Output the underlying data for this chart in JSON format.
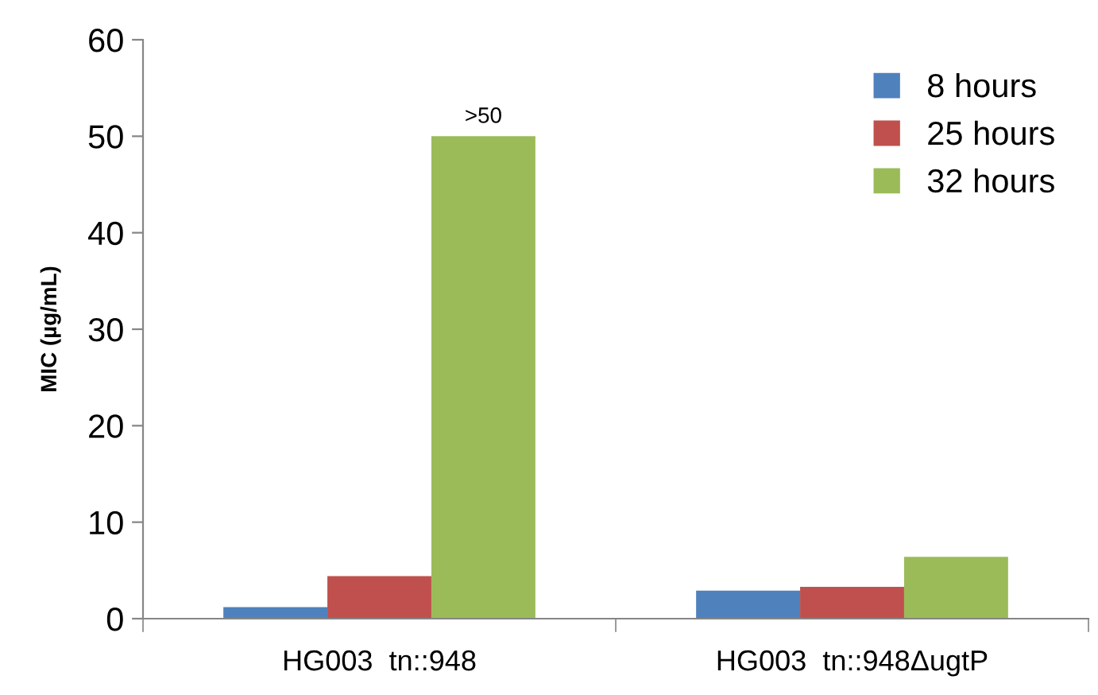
{
  "chart_data": {
    "type": "bar",
    "ylabel": "MIC (µg/mL)",
    "categories": [
      "HG003  tn::948",
      "HG003  tn::948ΔugtP"
    ],
    "series": [
      {
        "name": "8 hours",
        "color": "#4f81bd",
        "values": [
          1.2,
          2.9
        ]
      },
      {
        "name": "25 hours",
        "color": "#c0504d",
        "values": [
          4.4,
          3.3
        ]
      },
      {
        "name": "32 hours",
        "color": "#9bbb59",
        "values": [
          50,
          6.4
        ],
        "value_labels": [
          ">50",
          null
        ]
      }
    ],
    "ylim": [
      0,
      60
    ],
    "yticks": [
      0,
      10,
      20,
      30,
      40,
      50,
      60
    ],
    "grid": false,
    "legend": "top right"
  }
}
